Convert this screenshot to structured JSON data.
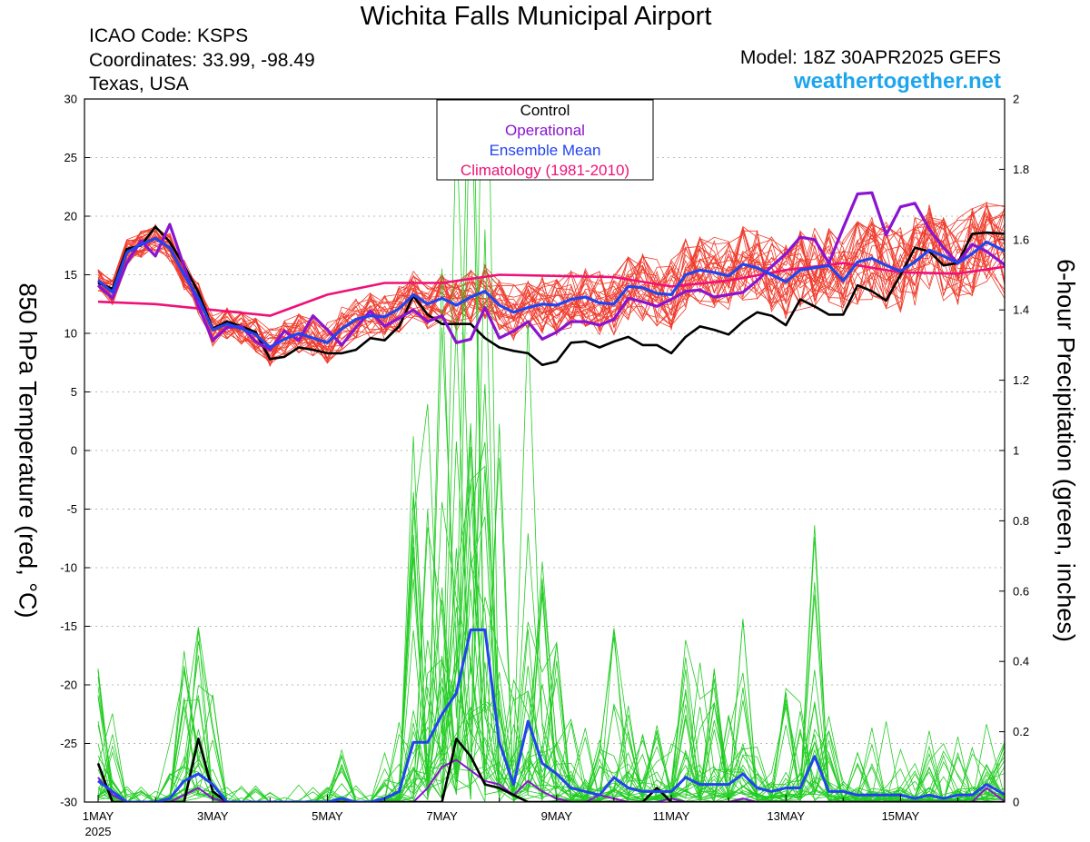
{
  "header": {
    "title": "Wichita Falls Municipal Airport",
    "icao": "ICAO Code: KSPS",
    "coords": "Coordinates: 33.99, -98.49",
    "region": "Texas, USA",
    "model": "Model: 18Z 30APR2025 GEFS",
    "site": "weathertogether.net"
  },
  "chart_data": {
    "type": "line",
    "ylabel_left": "850 hPa Temperature (red, °C)",
    "ylabel_right": "6-hour Precipitation (green, inches)",
    "x_range_days": [
      0,
      15.83
    ],
    "x_ticks": [
      {
        "day": 0,
        "label": "1MAY",
        "sublabel": "2025"
      },
      {
        "day": 2,
        "label": "3MAY"
      },
      {
        "day": 4,
        "label": "5MAY"
      },
      {
        "day": 6,
        "label": "7MAY"
      },
      {
        "day": 8,
        "label": "9MAY"
      },
      {
        "day": 10,
        "label": "11MAY"
      },
      {
        "day": 12,
        "label": "13MAY"
      },
      {
        "day": 14,
        "label": "15MAY"
      }
    ],
    "ylim_left": [
      -30,
      30
    ],
    "yticks_left": [
      30,
      25,
      20,
      15,
      10,
      5,
      0,
      -5,
      -10,
      -15,
      -20,
      -25,
      -30
    ],
    "ylim_right": [
      0,
      2
    ],
    "yticks_right": [
      "2",
      "1.8",
      "1.6",
      "1.4",
      "1.2",
      "1",
      "0.8",
      "0.6",
      "0.4",
      "0.2",
      "0"
    ],
    "grid": true,
    "legend": {
      "placement": "top-center",
      "items": [
        {
          "label": "Control",
          "color": "#000000"
        },
        {
          "label": "Operational",
          "color": "#8a14d0"
        },
        {
          "label": "Ensemble Mean",
          "color": "#2244ee"
        },
        {
          "label": "Climatology (1981-2010)",
          "color": "#ee1177"
        }
      ]
    },
    "colors": {
      "member_temp": "#ef3b2c",
      "member_precip": "#22cc22",
      "control": "#000000",
      "operational": "#8a14d0",
      "mean": "#2244ee",
      "climatology": "#ee1177"
    },
    "series": [
      {
        "key": "climatology",
        "axis": "left",
        "x": [
          0,
          1,
          2,
          3,
          4,
          5,
          6,
          7,
          8,
          9,
          10,
          11,
          12,
          13,
          14,
          15,
          15.83
        ],
        "y": [
          12.7,
          12.5,
          12.0,
          11.5,
          13.3,
          14.3,
          14.3,
          15.0,
          14.9,
          14.8,
          14.0,
          14.5,
          15.4,
          16.0,
          15.2,
          15.1,
          15.7
        ]
      },
      {
        "key": "control",
        "axis": "left",
        "x": [
          0,
          0.25,
          0.5,
          0.75,
          1,
          1.25,
          1.5,
          1.75,
          2,
          2.25,
          2.5,
          2.75,
          3,
          3.25,
          3.5,
          3.75,
          4,
          4.25,
          4.5,
          4.75,
          5,
          5.25,
          5.5,
          5.75,
          6,
          6.25,
          6.5,
          6.75,
          7,
          7.25,
          7.5,
          7.75,
          8,
          8.25,
          8.5,
          8.75,
          9,
          9.25,
          9.5,
          9.75,
          10,
          10.25,
          10.5,
          10.75,
          11,
          11.25,
          11.5,
          11.75,
          12,
          12.25,
          12.5,
          12.75,
          13,
          13.25,
          13.5,
          13.75,
          14,
          14.25,
          14.5,
          14.75,
          15,
          15.25,
          15.5,
          15.83
        ],
        "y": [
          14.3,
          13.8,
          17.2,
          17.5,
          19.1,
          17.8,
          15.8,
          13.5,
          10.4,
          11.0,
          10.6,
          10.1,
          7.8,
          8.0,
          8.8,
          8.6,
          8.3,
          8.3,
          8.6,
          9.6,
          9.4,
          10.6,
          13.2,
          11.6,
          10.8,
          10.8,
          10.8,
          9.6,
          8.8,
          8.5,
          8.3,
          7.3,
          7.6,
          9.2,
          9.3,
          8.8,
          9.3,
          9.7,
          9.0,
          9.0,
          8.3,
          9.7,
          10.6,
          10.3,
          9.9,
          11.0,
          11.8,
          11.5,
          10.7,
          12.9,
          12.3,
          11.6,
          11.6,
          14.1,
          13.6,
          12.8,
          15.0,
          17.3,
          17.0,
          15.8,
          16.0,
          18.5,
          18.6,
          18.5
        ]
      },
      {
        "key": "operational",
        "axis": "left",
        "x": [
          0,
          0.25,
          0.5,
          0.75,
          1,
          1.25,
          1.5,
          1.75,
          2,
          2.25,
          2.5,
          2.75,
          3,
          3.25,
          3.5,
          3.75,
          4,
          4.25,
          4.5,
          4.75,
          5,
          5.25,
          5.5,
          5.75,
          6,
          6.25,
          6.5,
          6.75,
          7,
          7.25,
          7.5,
          7.75,
          8,
          8.25,
          8.5,
          8.75,
          9,
          9.25,
          9.5,
          9.75,
          10,
          10.25,
          10.5,
          10.75,
          11,
          11.25,
          11.5,
          11.75,
          12,
          12.25,
          12.5,
          12.75,
          13,
          13.25,
          13.5,
          13.75,
          14,
          14.25,
          14.5,
          14.75,
          15,
          15.25,
          15.5,
          15.83
        ],
        "y": [
          14.1,
          13.0,
          16.0,
          17.9,
          16.6,
          19.3,
          15.7,
          12.3,
          9.4,
          10.5,
          10.6,
          9.3,
          8.6,
          10.2,
          9.4,
          11.5,
          10.3,
          9.0,
          10.5,
          11.9,
          10.6,
          11.3,
          12.0,
          11.0,
          11.5,
          9.2,
          9.5,
          12.2,
          9.6,
          10.2,
          11.0,
          9.5,
          10.1,
          11.0,
          11.0,
          10.7,
          11.2,
          13.0,
          12.7,
          12.3,
          12.9,
          13.6,
          13.7,
          13.1,
          13.3,
          13.5,
          14.5,
          15.7,
          16.8,
          18.2,
          18.0,
          16.0,
          19.0,
          21.9,
          22.0,
          18.4,
          20.8,
          21.1,
          18.9,
          17.3,
          16.0,
          17.6,
          17.0,
          15.8
        ]
      },
      {
        "key": "mean_temp",
        "axis": "left",
        "x": [
          0,
          0.25,
          0.5,
          0.75,
          1,
          1.25,
          1.5,
          1.75,
          2,
          2.25,
          2.5,
          2.75,
          3,
          3.25,
          3.5,
          3.75,
          4,
          4.25,
          4.5,
          4.75,
          5,
          5.25,
          5.5,
          5.75,
          6,
          6.25,
          6.5,
          6.75,
          7,
          7.25,
          7.5,
          7.75,
          8,
          8.25,
          8.5,
          8.75,
          9,
          9.25,
          9.5,
          9.75,
          10,
          10.25,
          10.5,
          10.75,
          11,
          11.25,
          11.5,
          11.75,
          12,
          12.25,
          12.5,
          12.75,
          13,
          13.25,
          13.5,
          13.75,
          14,
          14.25,
          14.5,
          14.75,
          15,
          15.25,
          15.5,
          15.83
        ],
        "y": [
          14.5,
          13.5,
          16.9,
          17.6,
          18.1,
          17.3,
          15.0,
          13.0,
          10.3,
          10.8,
          10.4,
          9.9,
          8.8,
          9.5,
          10.0,
          9.6,
          9.2,
          10.4,
          11.2,
          11.5,
          11.4,
          12.1,
          13.3,
          12.5,
          13.0,
          12.4,
          13.1,
          13.6,
          12.4,
          11.8,
          12.2,
          12.5,
          12.4,
          12.9,
          13.1,
          12.6,
          12.5,
          14.0,
          13.9,
          13.4,
          13.3,
          15.0,
          15.4,
          15.2,
          14.9,
          15.9,
          15.6,
          15.0,
          14.4,
          15.4,
          15.6,
          15.8,
          14.5,
          16.1,
          16.4,
          15.8,
          15.3,
          16.1,
          17.1,
          16.6,
          16.0,
          16.8,
          17.8,
          17.0
        ]
      },
      {
        "key": "mean_precip",
        "axis": "right",
        "x": [
          0,
          0.25,
          0.5,
          0.75,
          1,
          1.25,
          1.5,
          1.75,
          2,
          2.25,
          2.5,
          2.75,
          3,
          3.25,
          3.5,
          3.75,
          4,
          4.25,
          4.5,
          4.75,
          5,
          5.25,
          5.5,
          5.75,
          6,
          6.25,
          6.5,
          6.75,
          7,
          7.25,
          7.5,
          7.75,
          8,
          8.25,
          8.5,
          8.75,
          9,
          9.25,
          9.5,
          9.75,
          10,
          10.25,
          10.5,
          10.75,
          11,
          11.25,
          11.5,
          11.75,
          12,
          12.25,
          12.5,
          12.75,
          13,
          13.25,
          13.5,
          13.75,
          14,
          14.25,
          14.5,
          14.75,
          15,
          15.25,
          15.5,
          15.83
        ],
        "y": [
          0.06,
          0.03,
          0.0,
          0.0,
          0.0,
          0.01,
          0.06,
          0.08,
          0.05,
          0.0,
          0.0,
          0.0,
          0.0,
          0.0,
          0.0,
          0.0,
          0.0,
          0.01,
          0.0,
          0.0,
          0.01,
          0.03,
          0.17,
          0.17,
          0.25,
          0.31,
          0.49,
          0.49,
          0.17,
          0.05,
          0.23,
          0.11,
          0.08,
          0.04,
          0.03,
          0.02,
          0.07,
          0.04,
          0.03,
          0.03,
          0.03,
          0.07,
          0.05,
          0.05,
          0.05,
          0.08,
          0.04,
          0.03,
          0.04,
          0.04,
          0.13,
          0.03,
          0.03,
          0.02,
          0.02,
          0.02,
          0.02,
          0.01,
          0.02,
          0.01,
          0.02,
          0.02,
          0.05,
          0.02
        ]
      },
      {
        "key": "control_precip",
        "axis": "right",
        "x": [
          0,
          0.25,
          0.5,
          0.75,
          1,
          1.25,
          1.5,
          1.75,
          2,
          2.25,
          2.5,
          2.75,
          3,
          3.25,
          3.5,
          3.75,
          4,
          4.25,
          4.5,
          4.75,
          5,
          5.25,
          5.5,
          5.75,
          6,
          6.25,
          6.5,
          6.75,
          7,
          7.25,
          7.5,
          7.75,
          8,
          8.25,
          8.5,
          8.75,
          9,
          9.25,
          9.5,
          9.75,
          10,
          10.25,
          10.5,
          10.75,
          11,
          11.25,
          11.5,
          11.75,
          12,
          12.25,
          12.5,
          12.75,
          13,
          13.25,
          13.5,
          13.75,
          14,
          14.25,
          14.5,
          14.75,
          15,
          15.25,
          15.5,
          15.83
        ],
        "y": [
          0.11,
          0.0,
          0.0,
          0.0,
          0.0,
          0.0,
          0.0,
          0.18,
          0.03,
          0.0,
          0.0,
          0.0,
          0.0,
          0.0,
          0.0,
          0.0,
          0.0,
          0.0,
          0.0,
          0.0,
          0.0,
          0.0,
          0.0,
          0.0,
          0.0,
          0.18,
          0.13,
          0.05,
          0.04,
          0.02,
          0.0,
          0.0,
          0.0,
          0.0,
          0.0,
          0.0,
          0.0,
          0.0,
          0.0,
          0.04,
          0.0,
          0.0,
          0.0,
          0.0,
          0.0,
          0.0,
          0.0,
          0.0,
          0.0,
          0.0,
          0.0,
          0.0,
          0.0,
          0.0,
          0.0,
          0.0,
          0.0,
          0.0,
          0.0,
          0.0,
          0.0,
          0.0,
          0.0,
          0.0
        ]
      },
      {
        "key": "operational_precip",
        "axis": "right",
        "x": [
          0,
          0.25,
          0.5,
          0.75,
          1,
          1.25,
          1.5,
          1.75,
          2,
          2.25,
          2.5,
          2.75,
          3,
          3.25,
          3.5,
          3.75,
          4,
          4.25,
          4.5,
          4.75,
          5,
          5.25,
          5.5,
          5.75,
          6,
          6.25,
          6.5,
          6.75,
          7,
          7.25,
          7.5,
          7.75,
          8,
          8.25,
          8.5,
          8.75,
          9,
          9.25,
          9.5,
          9.75,
          10,
          10.25,
          10.5,
          10.75,
          11,
          11.25,
          11.5,
          11.75,
          12,
          12.25,
          12.5,
          12.75,
          13,
          13.25,
          13.5,
          13.75,
          14,
          14.25,
          14.5,
          14.75,
          15,
          15.25,
          15.5,
          15.83
        ],
        "y": [
          0.07,
          0.02,
          0.0,
          0.0,
          0.0,
          0.0,
          0.02,
          0.04,
          0.01,
          0.0,
          0.0,
          0.0,
          0.0,
          0.0,
          0.0,
          0.0,
          0.0,
          0.0,
          0.0,
          0.0,
          0.0,
          0.0,
          0.0,
          0.04,
          0.1,
          0.12,
          0.09,
          0.06,
          0.05,
          0.02,
          0.06,
          0.03,
          0.01,
          0.0,
          0.0,
          0.02,
          0.01,
          0.0,
          0.0,
          0.0,
          0.01,
          0.0,
          0.0,
          0.0,
          0.0,
          0.01,
          0.0,
          0.0,
          0.0,
          0.0,
          0.0,
          0.0,
          0.0,
          0.0,
          0.0,
          0.0,
          0.0,
          0.0,
          0.0,
          0.0,
          0.0,
          0.0,
          0.04,
          0.0
        ]
      }
    ]
  }
}
